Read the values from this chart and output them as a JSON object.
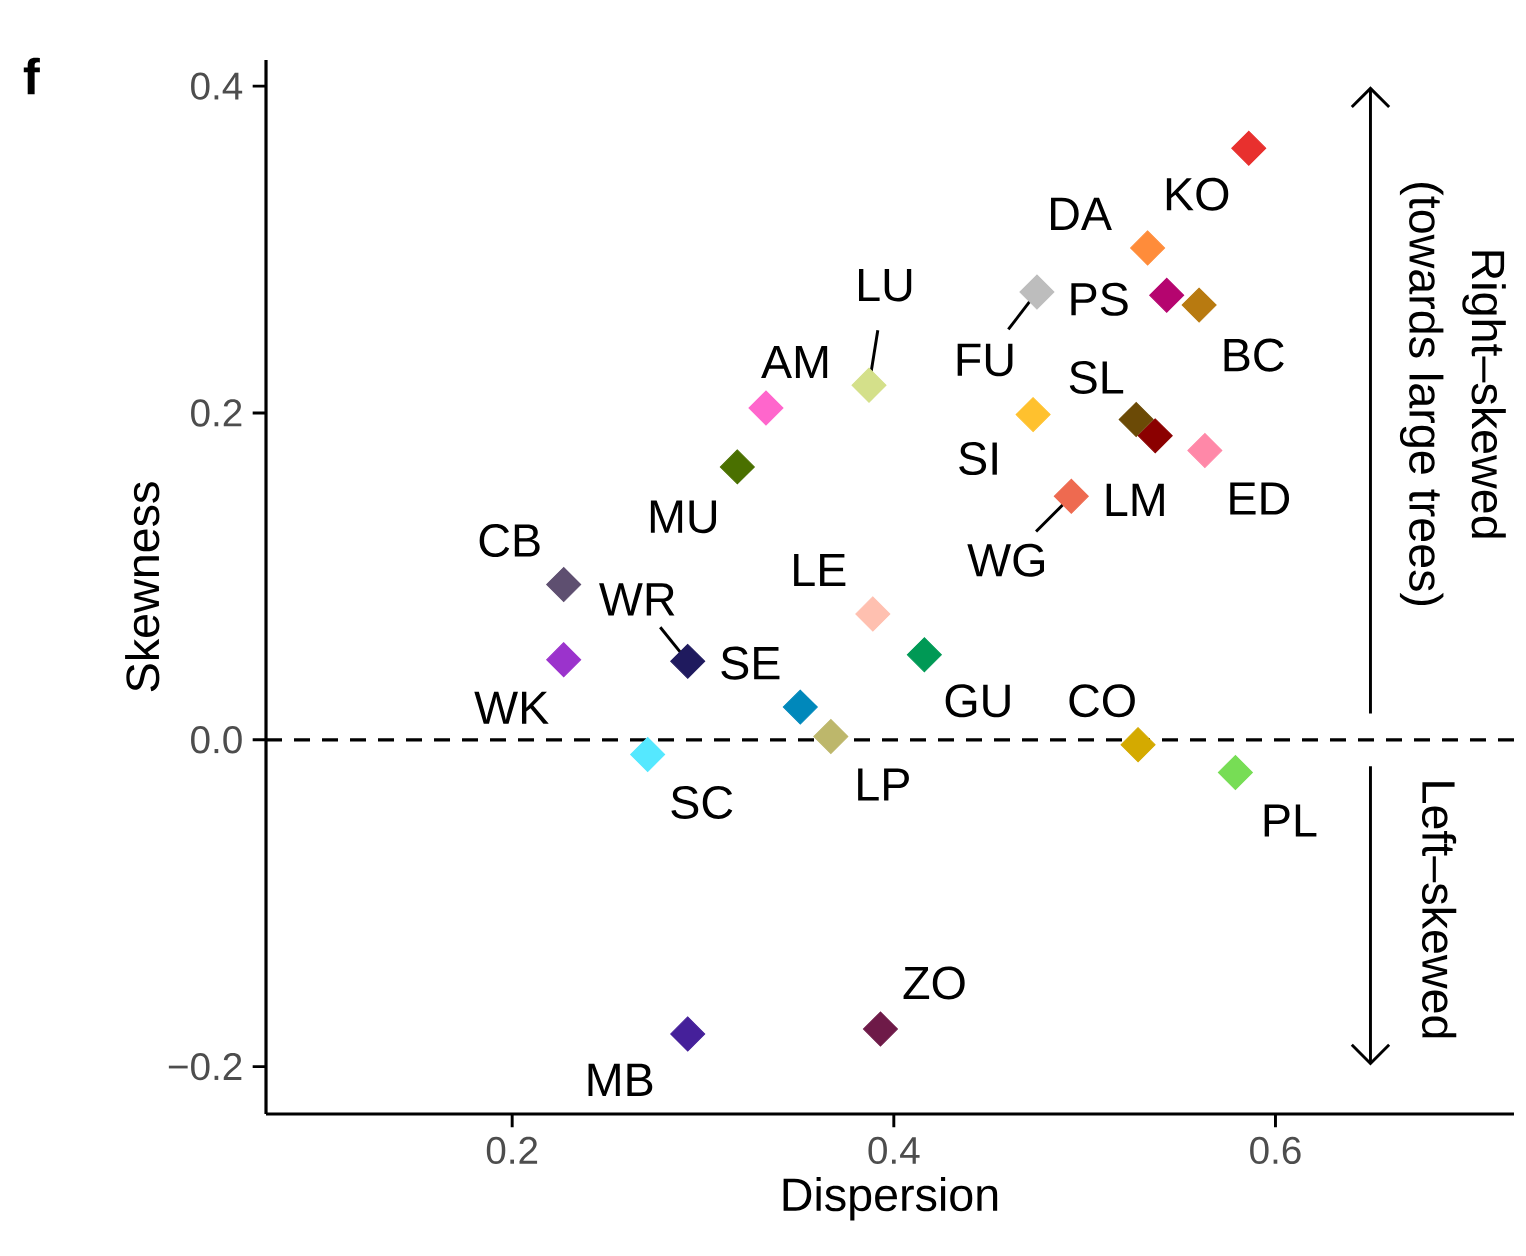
{
  "chart_data": {
    "type": "scatter",
    "xlabel": "Dispersion",
    "ylabel": "Skewness",
    "marker": "diamond",
    "x": [
      0.586,
      0.533,
      0.475,
      0.543,
      0.56,
      0.387,
      0.333,
      0.473,
      0.527,
      0.537,
      0.563,
      0.318,
      0.493,
      0.227,
      0.227,
      0.292,
      0.351,
      0.389,
      0.416,
      0.367,
      0.271,
      0.528,
      0.579,
      0.292,
      0.393
    ],
    "values": [
      0.362,
      0.301,
      0.274,
      0.272,
      0.266,
      0.217,
      0.203,
      0.199,
      0.196,
      0.186,
      0.177,
      0.167,
      0.149,
      0.095,
      0.049,
      0.048,
      0.02,
      0.077,
      0.052,
      0.002,
      -0.009,
      -0.003,
      -0.02,
      -0.18,
      -0.177
    ],
    "colors": [
      "#e8302e",
      "#ff8c3a",
      "#bdbdbd",
      "#b5056f",
      "#b87a10",
      "#d4e08a",
      "#ff66cc",
      "#ffc12e",
      "#6b4a06",
      "#8b0000",
      "#ff88a8",
      "#4a7000",
      "#ee6a50",
      "#5e4f70",
      "#9b33cc",
      "#1f1a5e",
      "#0088bb",
      "#ffc0b0",
      "#009955",
      "#bdb76b",
      "#55e8ff",
      "#d4aa00",
      "#77dd55",
      "#45209a",
      "#6e1a48"
    ],
    "xlim": [
      0.071,
      0.725
    ],
    "ylim": [
      -0.229,
      0.416
    ],
    "xticks": [
      0.2,
      0.4,
      0.6
    ],
    "yticks": [
      {
        "value": -0.2,
        "label": "−0.2"
      },
      {
        "value": 0,
        "label": "0.0"
      },
      0.2,
      0.4
    ],
    "grid": false,
    "ref_lines": [
      {
        "axis": "y",
        "value": 0,
        "line_style": "dashed"
      }
    ],
    "annotations": [
      "f",
      "Right–skewed",
      "(towards large trees)",
      "Left–skewed",
      {
        "text": "KO",
        "x": 0.586,
        "y": 0.362
      },
      {
        "text": "DA",
        "x": 0.533,
        "y": 0.301
      },
      {
        "text": "FU",
        "x": 0.475,
        "y": 0.274
      },
      {
        "text": "PS",
        "x": 0.543,
        "y": 0.272
      },
      {
        "text": "BC",
        "x": 0.56,
        "y": 0.266
      },
      {
        "text": "LU",
        "x": 0.387,
        "y": 0.217
      },
      {
        "text": "AM",
        "x": 0.333,
        "y": 0.203
      },
      {
        "text": "SI",
        "x": 0.473,
        "y": 0.199
      },
      {
        "text": "SL",
        "x": 0.527,
        "y": 0.196
      },
      {
        "text": "LM",
        "x": 0.537,
        "y": 0.186
      },
      {
        "text": "ED",
        "x": 0.563,
        "y": 0.177
      },
      {
        "text": "MU",
        "x": 0.318,
        "y": 0.167
      },
      {
        "text": "WG",
        "x": 0.493,
        "y": 0.149
      },
      {
        "text": "CB",
        "x": 0.227,
        "y": 0.095
      },
      {
        "text": "WK",
        "x": 0.227,
        "y": 0.049
      },
      {
        "text": "WR",
        "x": 0.292,
        "y": 0.048
      },
      {
        "text": "SE",
        "x": 0.351,
        "y": 0.02
      },
      {
        "text": "LE",
        "x": 0.389,
        "y": 0.077
      },
      {
        "text": "GU",
        "x": 0.416,
        "y": 0.052
      },
      {
        "text": "LP",
        "x": 0.367,
        "y": 0.002
      },
      {
        "text": "SC",
        "x": 0.271,
        "y": -0.009
      },
      {
        "text": "CO",
        "x": 0.528,
        "y": -0.003
      },
      {
        "text": "PL",
        "x": 0.579,
        "y": -0.02
      },
      {
        "text": "MB",
        "x": 0.292,
        "y": -0.18
      },
      {
        "text": "ZO",
        "x": 0.393,
        "y": -0.177
      }
    ]
  }
}
